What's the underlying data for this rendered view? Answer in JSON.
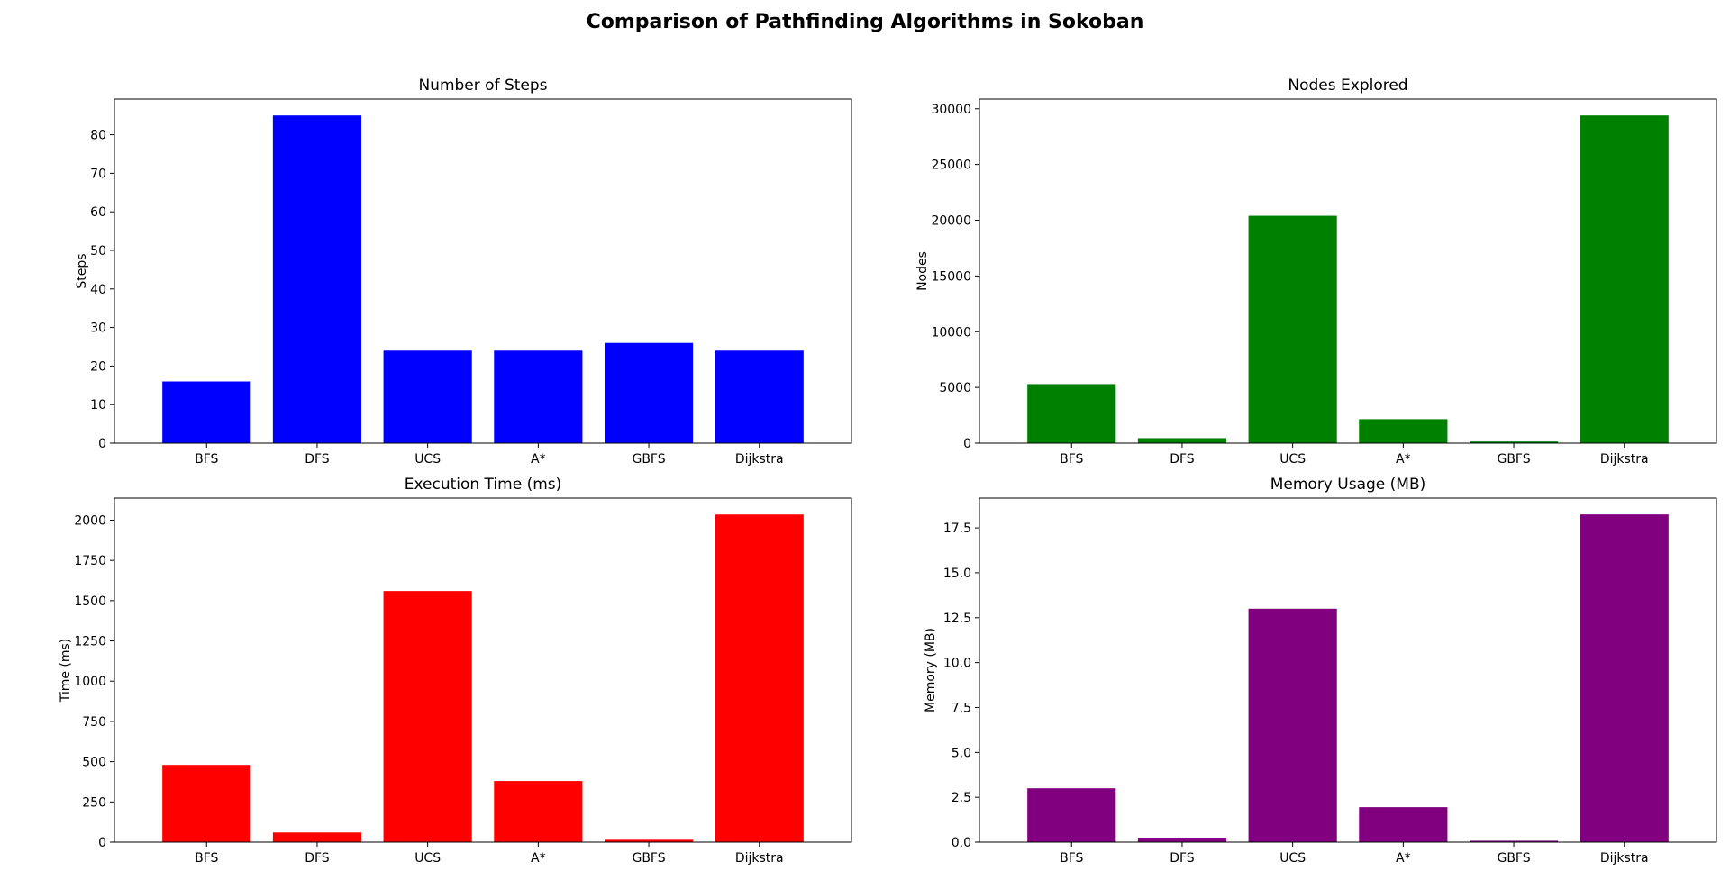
{
  "figure": {
    "title": "Comparison of Pathfinding Algorithms in Sokoban"
  },
  "chart_data": [
    {
      "type": "bar",
      "title": "Number of Steps",
      "xlabel": "",
      "ylabel": "Steps",
      "categories": [
        "BFS",
        "DFS",
        "UCS",
        "A*",
        "GBFS",
        "Dijkstra"
      ],
      "values": [
        16,
        85,
        24,
        24,
        26,
        24
      ],
      "ylim": [
        0,
        89.25
      ],
      "yticks": [
        0,
        10,
        20,
        30,
        40,
        50,
        60,
        70,
        80
      ],
      "ytick_labels": [
        "0",
        "10",
        "20",
        "30",
        "40",
        "50",
        "60",
        "70",
        "80"
      ],
      "color": "#0000ff",
      "grid": false,
      "legend": "none"
    },
    {
      "type": "bar",
      "title": "Nodes Explored",
      "xlabel": "",
      "ylabel": "Nodes",
      "categories": [
        "BFS",
        "DFS",
        "UCS",
        "A*",
        "GBFS",
        "Dijkstra"
      ],
      "values": [
        5300,
        450,
        20400,
        2150,
        150,
        29400
      ],
      "ylim": [
        0,
        30870
      ],
      "yticks": [
        0,
        5000,
        10000,
        15000,
        20000,
        25000,
        30000
      ],
      "ytick_labels": [
        "0",
        "5000",
        "10000",
        "15000",
        "20000",
        "25000",
        "30000"
      ],
      "color": "#008000",
      "grid": false,
      "legend": "none"
    },
    {
      "type": "bar",
      "title": "Execution Time (ms)",
      "xlabel": "",
      "ylabel": "Time (ms)",
      "categories": [
        "BFS",
        "DFS",
        "UCS",
        "A*",
        "GBFS",
        "Dijkstra"
      ],
      "values": [
        480,
        60,
        1560,
        380,
        15,
        2035
      ],
      "ylim": [
        0,
        2137
      ],
      "yticks": [
        0,
        250,
        500,
        750,
        1000,
        1250,
        1500,
        1750,
        2000
      ],
      "ytick_labels": [
        "0",
        "250",
        "500",
        "750",
        "1000",
        "1250",
        "1500",
        "1750",
        "2000"
      ],
      "color": "#ff0000",
      "grid": false,
      "legend": "none"
    },
    {
      "type": "bar",
      "title": "Memory Usage (MB)",
      "xlabel": "",
      "ylabel": "Memory (MB)",
      "categories": [
        "BFS",
        "DFS",
        "UCS",
        "A*",
        "GBFS",
        "Dijkstra"
      ],
      "values": [
        3.0,
        0.25,
        13.0,
        1.95,
        0.08,
        18.25
      ],
      "ylim": [
        0,
        19.16
      ],
      "yticks": [
        0,
        2.5,
        5,
        7.5,
        10,
        12.5,
        15,
        17.5
      ],
      "ytick_labels": [
        "0.0",
        "2.5",
        "5.0",
        "7.5",
        "10.0",
        "12.5",
        "15.0",
        "17.5"
      ],
      "color": "#800080",
      "grid": false,
      "legend": "none"
    }
  ]
}
